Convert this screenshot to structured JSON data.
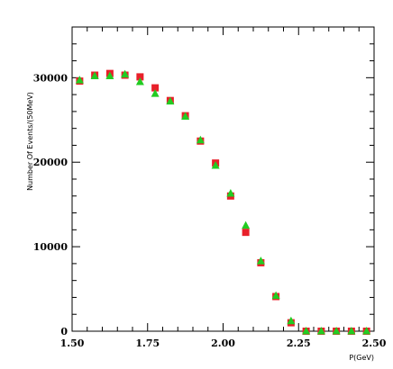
{
  "chart_data": {
    "type": "scatter",
    "title": "",
    "xlabel": "P(GeV)",
    "ylabel": "Number Of Events/(50MeV)",
    "xlim": [
      1.5,
      2.5
    ],
    "ylim": [
      0,
      36000
    ],
    "x_ticks": [
      1.5,
      1.75,
      2.0,
      2.25,
      2.5
    ],
    "x_tick_labels": [
      "1.50",
      "1.75",
      "2.00",
      "2.25",
      "2.50"
    ],
    "y_ticks": [
      0,
      10000,
      20000,
      30000
    ],
    "y_tick_labels": [
      "0",
      "10000",
      "20000",
      "30000"
    ],
    "grid": false,
    "legend": "none",
    "series": [
      {
        "marker": "square",
        "color": "#e8202a",
        "x": [
          1.525,
          1.575,
          1.625,
          1.675,
          1.725,
          1.775,
          1.825,
          1.875,
          1.925,
          1.975,
          2.025,
          2.075,
          2.125,
          2.175,
          2.225,
          2.275,
          2.325,
          2.375,
          2.425,
          2.475
        ],
        "y": [
          29600,
          30300,
          30500,
          30300,
          30100,
          28800,
          27300,
          25500,
          22500,
          19900,
          16000,
          11700,
          8100,
          4100,
          1000,
          0,
          0,
          0,
          0,
          0
        ]
      },
      {
        "marker": "triangle",
        "color": "#22cc22",
        "x": [
          1.525,
          1.575,
          1.625,
          1.675,
          1.725,
          1.775,
          1.825,
          1.875,
          1.925,
          1.975,
          2.025,
          2.075,
          2.125,
          2.175,
          2.225,
          2.275,
          2.325,
          2.375,
          2.425,
          2.475
        ],
        "y": [
          29700,
          30200,
          30200,
          30400,
          29500,
          28100,
          27200,
          25400,
          22600,
          19600,
          16300,
          12500,
          8300,
          4200,
          1200,
          0,
          0,
          0,
          0,
          0
        ]
      }
    ]
  }
}
